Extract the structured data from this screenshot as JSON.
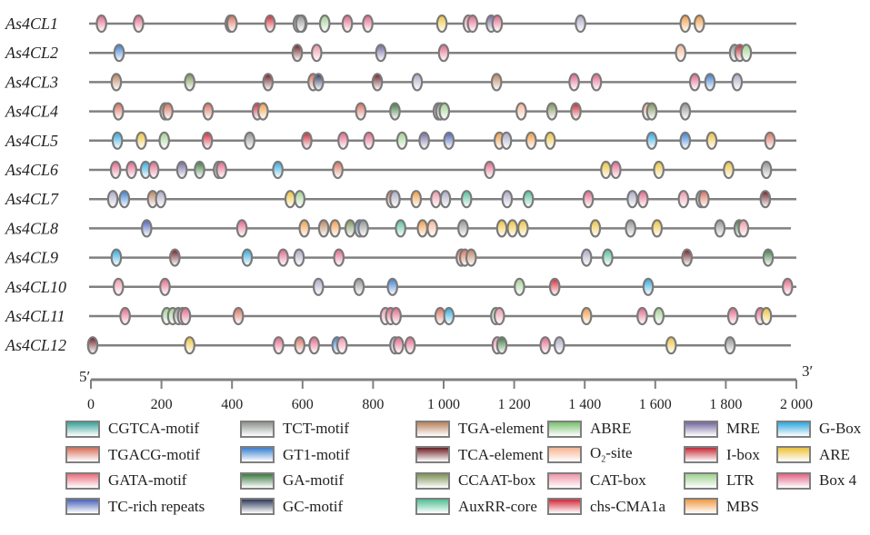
{
  "chart_data": {
    "type": "diagram",
    "title": "",
    "xlabel": "",
    "axis": {
      "range": [
        0,
        2000
      ],
      "ticks": [
        0,
        200,
        400,
        600,
        800,
        1000,
        1200,
        1400,
        1600,
        1800,
        2000
      ],
      "tick_labels": [
        "0",
        "200",
        "400",
        "600",
        "800",
        "1 000",
        "1 200",
        "1 400",
        "1 600",
        "1 800",
        "2 000"
      ],
      "start_label": "5′",
      "end_label": "3′"
    },
    "element_types": [
      {
        "key": "CGTCA",
        "name": "CGTCA-motif",
        "color": "#3aa39a"
      },
      {
        "key": "TGACG",
        "name": "TGACG-motif",
        "color": "#d9705c"
      },
      {
        "key": "GATA",
        "name": "GATA-motif",
        "color": "#e86f7c"
      },
      {
        "key": "TCrich",
        "name": "TC-rich repeats",
        "color": "#4a63b8"
      },
      {
        "key": "TCT",
        "name": "TCT-motif",
        "color": "#8f9490"
      },
      {
        "key": "GT1",
        "name": "GT1-motif",
        "color": "#3a7fd0"
      },
      {
        "key": "GA",
        "name": "GA-motif",
        "color": "#3e7a42"
      },
      {
        "key": "GC",
        "name": "GC-motif",
        "color": "#303a5c"
      },
      {
        "key": "TGA",
        "name": "TGA-element",
        "color": "#b9835e"
      },
      {
        "key": "TCA",
        "name": "TCA-element",
        "color": "#6a1f24"
      },
      {
        "key": "CCAAT",
        "name": "CCAAT-box",
        "color": "#7e9358"
      },
      {
        "key": "AuxRR",
        "name": "AuxRR-core",
        "color": "#52bf96"
      },
      {
        "key": "ABRE",
        "name": "ABRE",
        "color": "#78c06e"
      },
      {
        "key": "O2",
        "name": "O2-site",
        "color": "#f6b493"
      },
      {
        "key": "CAT",
        "name": "CAT-box",
        "color": "#ee95a8"
      },
      {
        "key": "chs",
        "name": "chs-CMA1a",
        "color": "#d42a3a"
      },
      {
        "key": "MRE",
        "name": "MRE",
        "color": "#74689f"
      },
      {
        "key": "Ibox",
        "name": "I-box",
        "color": "#c42a36"
      },
      {
        "key": "LTR",
        "name": "LTR",
        "color": "#9fd18f"
      },
      {
        "key": "MBS",
        "name": "MBS",
        "color": "#f19a44"
      },
      {
        "key": "GBox",
        "name": "G-Box",
        "color": "#2fa8de"
      },
      {
        "key": "ARE",
        "name": "ARE",
        "color": "#ecc23a"
      },
      {
        "key": "Box4",
        "name": "Box 4",
        "color": "#e26688"
      },
      {
        "key": "Unk",
        "name": "",
        "color": "#a9a8c4"
      }
    ],
    "genes": [
      {
        "name": "As4CL1",
        "length": 2000,
        "elements": [
          [
            "Box4",
            30
          ],
          [
            "Box4",
            135
          ],
          [
            "TGA",
            395
          ],
          [
            "TGACG",
            400
          ],
          [
            "chs",
            508
          ],
          [
            "TCT",
            588
          ],
          [
            "Ibox",
            598
          ],
          [
            "TCT",
            595
          ],
          [
            "LTR",
            663
          ],
          [
            "Box4",
            727
          ],
          [
            "Box4",
            785
          ],
          [
            "ARE",
            995
          ],
          [
            "CAT",
            1070
          ],
          [
            "Box4",
            1082
          ],
          [
            "MRE",
            1135
          ],
          [
            "Box4",
            1152
          ],
          [
            "Unk",
            1388
          ],
          [
            "MBS",
            1685
          ],
          [
            "MBS",
            1725
          ]
        ]
      },
      {
        "name": "As4CL2",
        "length": 2000,
        "elements": [
          [
            "GT1",
            80
          ],
          [
            "TCA",
            585
          ],
          [
            "CAT",
            640
          ],
          [
            "MRE",
            822
          ],
          [
            "Box4",
            1000
          ],
          [
            "O2",
            1672
          ],
          [
            "TCT",
            1825
          ],
          [
            "Ibox",
            1840
          ],
          [
            "LTR",
            1858
          ]
        ]
      },
      {
        "name": "As4CL3",
        "length": 2000,
        "elements": [
          [
            "TGA",
            72
          ],
          [
            "CCAAT",
            280
          ],
          [
            "TCA",
            502
          ],
          [
            "TGACG",
            630
          ],
          [
            "GC",
            645
          ],
          [
            "TCA",
            812
          ],
          [
            "Unk",
            925
          ],
          [
            "TGA",
            1150
          ],
          [
            "Box4",
            1370
          ],
          [
            "Box4",
            1433
          ],
          [
            "Box4",
            1712
          ],
          [
            "GT1",
            1755
          ],
          [
            "Unk",
            1832
          ]
        ]
      },
      {
        "name": "As4CL4",
        "length": 2000,
        "elements": [
          [
            "TGACG",
            78
          ],
          [
            "TGA",
            210
          ],
          [
            "TGACG",
            218
          ],
          [
            "TGACG",
            332
          ],
          [
            "chs",
            472
          ],
          [
            "MBS",
            488
          ],
          [
            "TGACG",
            765
          ],
          [
            "GA",
            862
          ],
          [
            "CAT",
            985
          ],
          [
            "TCT",
            992
          ],
          [
            "LTR",
            1002
          ],
          [
            "O2",
            1220
          ],
          [
            "CCAAT",
            1307
          ],
          [
            "Ibox",
            1375
          ],
          [
            "O2",
            1578
          ],
          [
            "CCAAT",
            1590
          ],
          [
            "TCT",
            1685
          ]
        ]
      },
      {
        "name": "As4CL5",
        "length": 2000,
        "elements": [
          [
            "GBox",
            75
          ],
          [
            "ARE",
            143
          ],
          [
            "LTR",
            208
          ],
          [
            "chs",
            330
          ],
          [
            "TCT",
            450
          ],
          [
            "Ibox",
            612
          ],
          [
            "Box4",
            715
          ],
          [
            "Box4",
            788
          ],
          [
            "LTR",
            882
          ],
          [
            "MRE",
            945
          ],
          [
            "TCrich",
            1015
          ],
          [
            "MBS",
            1158
          ],
          [
            "Unk",
            1178
          ],
          [
            "MBS",
            1248
          ],
          [
            "ARE",
            1302
          ],
          [
            "GBox",
            1590
          ],
          [
            "GT1",
            1685
          ],
          [
            "ARE",
            1760
          ],
          [
            "TGACG",
            1925
          ]
        ]
      },
      {
        "name": "As4CL6",
        "length": 2000,
        "elements": [
          [
            "Box4",
            70
          ],
          [
            "Box4",
            115
          ],
          [
            "GBox",
            155
          ],
          [
            "Box4",
            178
          ],
          [
            "MRE",
            258
          ],
          [
            "GA",
            308
          ],
          [
            "TCT",
            362
          ],
          [
            "Box4",
            370
          ],
          [
            "GBox",
            530
          ],
          [
            "TGACG",
            700
          ],
          [
            "Box4",
            1130
          ],
          [
            "ARE",
            1460
          ],
          [
            "Box4",
            1488
          ],
          [
            "ARE",
            1610
          ],
          [
            "ARE",
            1808
          ],
          [
            "TCT",
            1915
          ]
        ]
      },
      {
        "name": "As4CL7",
        "length": 2000,
        "elements": [
          [
            "Unk",
            62
          ],
          [
            "GT1",
            95
          ],
          [
            "TGA",
            175
          ],
          [
            "Unk",
            198
          ],
          [
            "ARE",
            565
          ],
          [
            "LTR",
            592
          ],
          [
            "TGACG",
            852
          ],
          [
            "Unk",
            862
          ],
          [
            "MBS",
            922
          ],
          [
            "CAT",
            978
          ],
          [
            "Unk",
            1005
          ],
          [
            "AuxRR",
            1065
          ],
          [
            "Unk",
            1180
          ],
          [
            "AuxRR",
            1240
          ],
          [
            "Box4",
            1410
          ],
          [
            "Unk",
            1535
          ],
          [
            "Box4",
            1565
          ],
          [
            "CAT",
            1680
          ],
          [
            "TCT",
            1730
          ],
          [
            "TGACG",
            1738
          ],
          [
            "TCA",
            1912
          ]
        ]
      },
      {
        "name": "As4CL8",
        "length": 2000,
        "elements": [
          [
            "TCrich",
            158
          ],
          [
            "Box4",
            428
          ],
          [
            "MBS",
            605
          ],
          [
            "TGA",
            660
          ],
          [
            "MBS",
            692
          ],
          [
            "CCAAT",
            735
          ],
          [
            "GT1",
            762
          ],
          [
            "TCT",
            772
          ],
          [
            "AuxRR",
            878
          ],
          [
            "MBS",
            940
          ],
          [
            "O2",
            968
          ],
          [
            "TCT",
            1055
          ],
          [
            "ARE",
            1165
          ],
          [
            "ARE",
            1195
          ],
          [
            "ARE",
            1225
          ],
          [
            "ARE",
            1430
          ],
          [
            "TCT",
            1530
          ],
          [
            "ARE",
            1605
          ],
          [
            "TCT",
            1783
          ],
          [
            "GA",
            1838
          ],
          [
            "CAT",
            1850
          ]
        ]
      },
      {
        "name": "As4CL9",
        "length": 2000,
        "elements": [
          [
            "GBox",
            72
          ],
          [
            "TCA",
            238
          ],
          [
            "GBox",
            443
          ],
          [
            "Box4",
            545
          ],
          [
            "Unk",
            590
          ],
          [
            "Box4",
            703
          ],
          [
            "TGACG",
            1050
          ],
          [
            "TGACG",
            1060
          ],
          [
            "TGA",
            1078
          ],
          [
            "Unk",
            1405
          ],
          [
            "AuxRR",
            1465
          ],
          [
            "TCA",
            1690
          ],
          [
            "GA",
            1920
          ]
        ]
      },
      {
        "name": "As4CL10",
        "length": 2000,
        "elements": [
          [
            "CAT",
            78
          ],
          [
            "Box4",
            210
          ],
          [
            "Unk",
            645
          ],
          [
            "TCT",
            760
          ],
          [
            "GT1",
            855
          ],
          [
            "LTR",
            1215
          ],
          [
            "chs",
            1315
          ],
          [
            "GBox",
            1580
          ],
          [
            "Box4",
            1975
          ]
        ]
      },
      {
        "name": "As4CL11",
        "length": 2000,
        "elements": [
          [
            "Box4",
            97
          ],
          [
            "LTR",
            215
          ],
          [
            "LTR",
            232
          ],
          [
            "TCT",
            248
          ],
          [
            "CAT",
            260
          ],
          [
            "Box4",
            268
          ],
          [
            "TGACG",
            418
          ],
          [
            "CAT",
            835
          ],
          [
            "Box4",
            850
          ],
          [
            "Box4",
            865
          ],
          [
            "TGACG",
            990
          ],
          [
            "GBox",
            1015
          ],
          [
            "LTR",
            1148
          ],
          [
            "CAT",
            1158
          ],
          [
            "MBS",
            1405
          ],
          [
            "Box4",
            1563
          ],
          [
            "LTR",
            1610
          ],
          [
            "Box4",
            1820
          ],
          [
            "Box4",
            1898
          ],
          [
            "ARE",
            1915
          ]
        ]
      },
      {
        "name": "As4CL12",
        "length": 2000,
        "elements": [
          [
            "TCA",
            5
          ],
          [
            "ARE",
            280
          ],
          [
            "Box4",
            532
          ],
          [
            "TGACG",
            592
          ],
          [
            "Box4",
            633
          ],
          [
            "GT1",
            698
          ],
          [
            "CAT",
            712
          ],
          [
            "Unk",
            862
          ],
          [
            "Box4",
            872
          ],
          [
            "Box4",
            905
          ],
          [
            "CAT",
            1152
          ],
          [
            "GA",
            1165
          ],
          [
            "Box4",
            1288
          ],
          [
            "Unk",
            1328
          ],
          [
            "ARE",
            1645
          ],
          [
            "TCT",
            1812
          ]
        ]
      }
    ]
  }
}
